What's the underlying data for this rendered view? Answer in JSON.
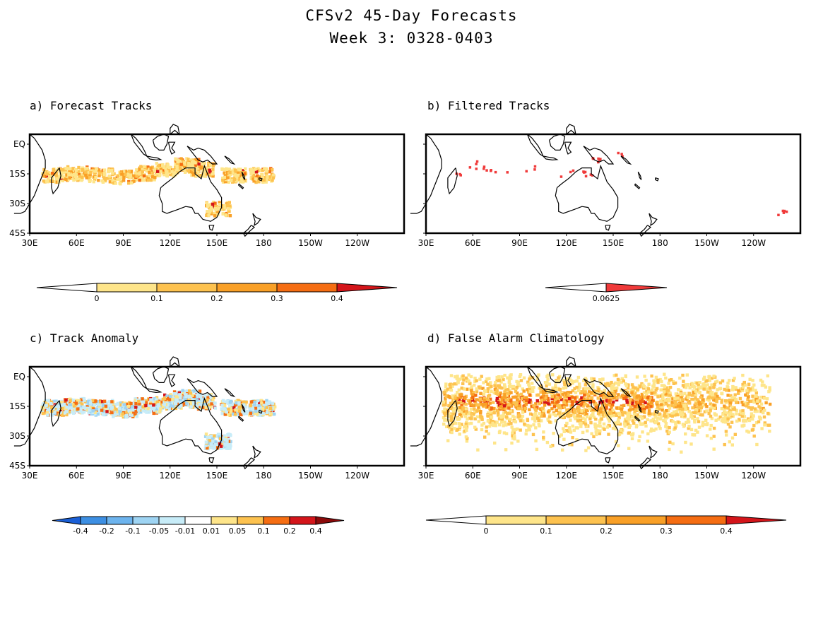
{
  "title_line1": "CFSv2 45-Day Forecasts",
  "title_line2": "Week 3: 0328-0403",
  "lat_labels": [
    "EQ",
    "15S",
    "30S",
    "45S"
  ],
  "lon_labels": [
    "30E",
    "60E",
    "90E",
    "120E",
    "150E",
    "180",
    "150W",
    "120W"
  ],
  "panels": [
    {
      "id": "a",
      "label": "a) Forecast Tracks",
      "colorbar": {
        "labels": [
          "0",
          "0.1",
          "0.2",
          "0.3",
          "0.4"
        ],
        "colors": [
          "#ffffff",
          "#fee58a",
          "#fdc24f",
          "#f9a027",
          "#f56d12",
          "#d4151a"
        ]
      }
    },
    {
      "id": "b",
      "label": "b) Filtered Tracks",
      "colorbar": {
        "labels": [
          "0.0625"
        ],
        "colors": [
          "#ffffff",
          "#f03a3a"
        ]
      }
    },
    {
      "id": "c",
      "label": "c) Track Anomaly",
      "colorbar": {
        "labels": [
          "-0.4",
          "-0.2",
          "-0.1",
          "-0.05",
          "-0.01",
          "0.01",
          "0.05",
          "0.1",
          "0.2",
          "0.4"
        ],
        "colors": [
          "#1a5fd6",
          "#3d8fe3",
          "#6db4ee",
          "#9ed4f3",
          "#c7ecf8",
          "#ffffff",
          "#fee58a",
          "#fdc24f",
          "#f56d12",
          "#d4151a",
          "#8c0a0a"
        ]
      }
    },
    {
      "id": "d",
      "label": "d) False Alarm Climatology",
      "colorbar": {
        "labels": [
          "0",
          "0.1",
          "0.2",
          "0.3",
          "0.4"
        ],
        "colors": [
          "#ffffff",
          "#fee58a",
          "#fdc24f",
          "#f9a027",
          "#f56d12",
          "#d4151a"
        ]
      }
    }
  ]
}
